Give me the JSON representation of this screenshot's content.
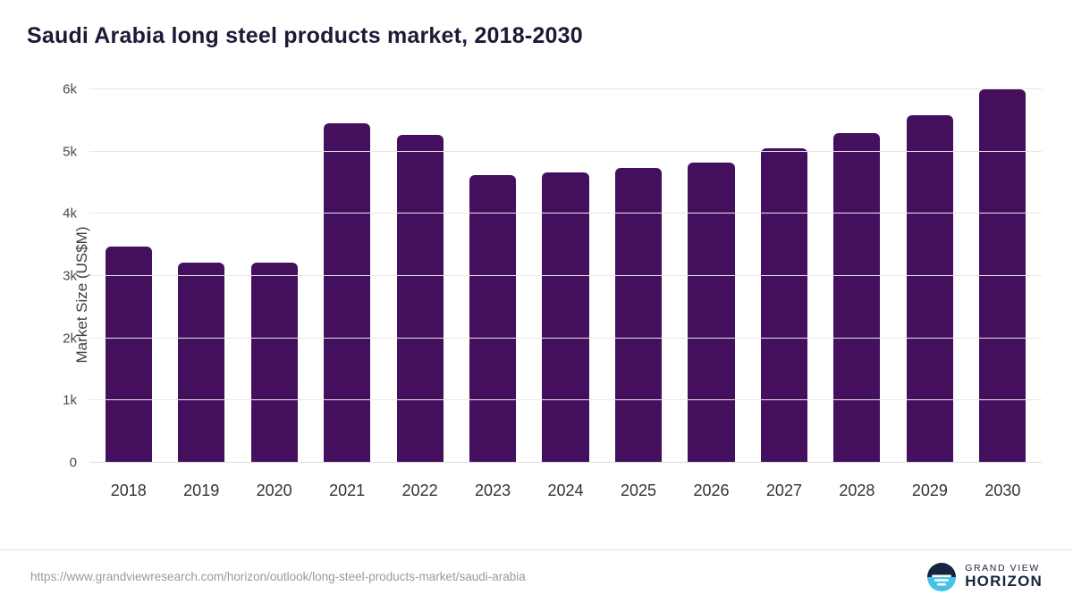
{
  "chart_data": {
    "type": "bar",
    "title": "Saudi Arabia long steel products market, 2018-2030",
    "categories": [
      "2018",
      "2019",
      "2020",
      "2021",
      "2022",
      "2023",
      "2024",
      "2025",
      "2026",
      "2027",
      "2028",
      "2029",
      "2030"
    ],
    "values": [
      3470,
      3220,
      3220,
      5450,
      5270,
      4620,
      4660,
      4730,
      4820,
      5050,
      5290,
      5580,
      6000
    ],
    "xlabel": "",
    "ylabel": "Market Size (US$M)",
    "ylim": [
      0,
      6000
    ],
    "yticks": [
      {
        "value": 0,
        "label": "0"
      },
      {
        "value": 1000,
        "label": "1k"
      },
      {
        "value": 2000,
        "label": "2k"
      },
      {
        "value": 3000,
        "label": "3k"
      },
      {
        "value": 4000,
        "label": "4k"
      },
      {
        "value": 5000,
        "label": "5k"
      },
      {
        "value": 6000,
        "label": "6k"
      }
    ],
    "grid": "horizontal",
    "legend": "none",
    "bar_color": "#44105e"
  },
  "footer": {
    "source_url": "https://www.grandviewresearch.com/horizon/outlook/long-steel-products-market/saudi-arabia",
    "logo_text_top": "GRAND VIEW",
    "logo_text_bottom": "HORIZON"
  },
  "colors": {
    "title": "#211737",
    "gridline": "#e7e7e7",
    "axis_text": "#4a4a4a",
    "logo_navy": "#16243d",
    "logo_blue": "#45c2e5"
  }
}
